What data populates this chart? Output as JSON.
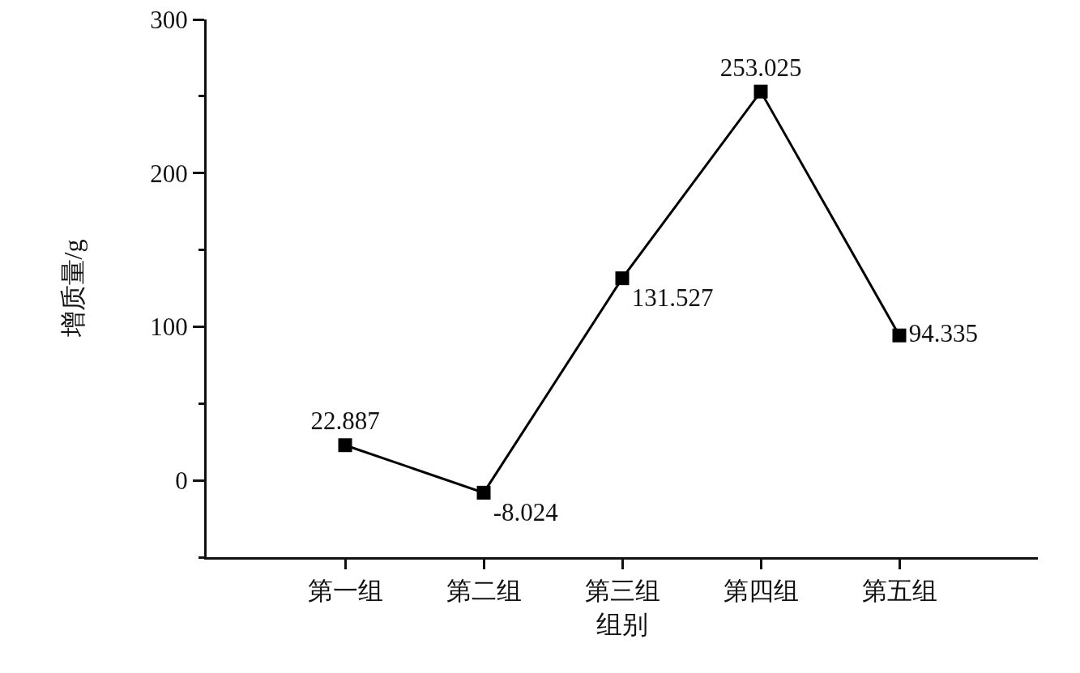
{
  "chart_data": {
    "type": "line",
    "xlabel": "组别",
    "ylabel": "增质量/g",
    "categories": [
      "第一组",
      "第二组",
      "第三组",
      "第四组",
      "第五组"
    ],
    "values": [
      22.887,
      -8.024,
      131.527,
      253.025,
      94.335
    ],
    "color": "#000000",
    "ylim": [
      -50,
      300
    ],
    "yticks": [
      {
        "value": -50,
        "label": null
      },
      0,
      {
        "value": 50,
        "label": null
      },
      100,
      {
        "value": 150,
        "label": null
      },
      200,
      {
        "value": 250,
        "label": null
      },
      300
    ],
    "marker": "square",
    "line_style": "solid",
    "data_labels": true
  }
}
